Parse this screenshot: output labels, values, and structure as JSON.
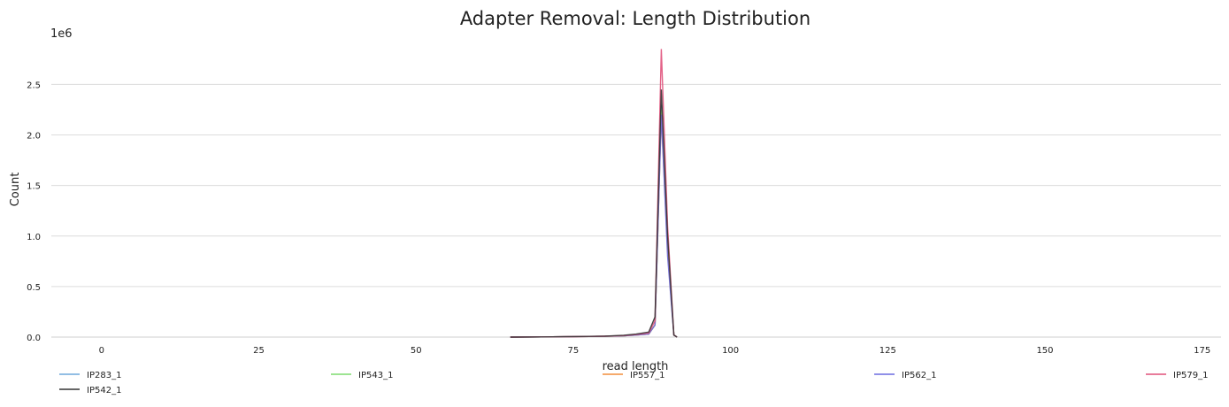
{
  "chart_data": {
    "type": "line",
    "title": "Adapter Removal: Length Distribution",
    "xlabel": "read length",
    "ylabel": "Count",
    "y_multiplier_label": "1e6",
    "xlim": [
      -8,
      178
    ],
    "ylim": [
      0,
      2.95
    ],
    "x_ticks": [
      0,
      25,
      50,
      75,
      100,
      125,
      150,
      175
    ],
    "y_ticks": [
      0.0,
      0.5,
      1.0,
      1.5,
      2.0,
      2.5
    ],
    "x_tick_labels": [
      "0",
      "25",
      "50",
      "75",
      "100",
      "125",
      "150",
      "175"
    ],
    "y_tick_labels": [
      "0.0",
      "0.5",
      "1.0",
      "1.5",
      "2.0",
      "2.5"
    ],
    "grid": "horizontal",
    "legend_position": "bottom",
    "x": [
      65,
      70,
      75,
      80,
      83,
      85,
      87,
      88,
      89,
      90,
      91,
      91.5
    ],
    "series": [
      {
        "name": "IP283_1",
        "color": "#6fa8dc",
        "values": [
          0,
          0.002,
          0.004,
          0.008,
          0.012,
          0.02,
          0.03,
          0.12,
          2.3,
          0.9,
          0.02,
          0
        ]
      },
      {
        "name": "IP543_1",
        "color": "#7ddc6f",
        "values": [
          0,
          0.002,
          0.004,
          0.008,
          0.012,
          0.02,
          0.03,
          0.12,
          2.25,
          0.9,
          0.02,
          0
        ]
      },
      {
        "name": "IP557_1",
        "color": "#f28e3c",
        "values": [
          0,
          0.002,
          0.004,
          0.008,
          0.012,
          0.02,
          0.03,
          0.12,
          2.2,
          0.85,
          0.02,
          0
        ]
      },
      {
        "name": "IP562_1",
        "color": "#6b6be0",
        "values": [
          0,
          0.002,
          0.004,
          0.008,
          0.012,
          0.02,
          0.03,
          0.12,
          2.2,
          0.8,
          0.02,
          0
        ]
      },
      {
        "name": "IP579_1",
        "color": "#e0507a",
        "values": [
          0,
          0.002,
          0.004,
          0.009,
          0.015,
          0.025,
          0.04,
          0.16,
          2.85,
          1.1,
          0.02,
          0
        ]
      },
      {
        "name": "IP542_1",
        "color": "#333333",
        "values": [
          0,
          0.002,
          0.005,
          0.01,
          0.018,
          0.03,
          0.05,
          0.2,
          2.45,
          1.0,
          0.02,
          0
        ]
      }
    ]
  }
}
